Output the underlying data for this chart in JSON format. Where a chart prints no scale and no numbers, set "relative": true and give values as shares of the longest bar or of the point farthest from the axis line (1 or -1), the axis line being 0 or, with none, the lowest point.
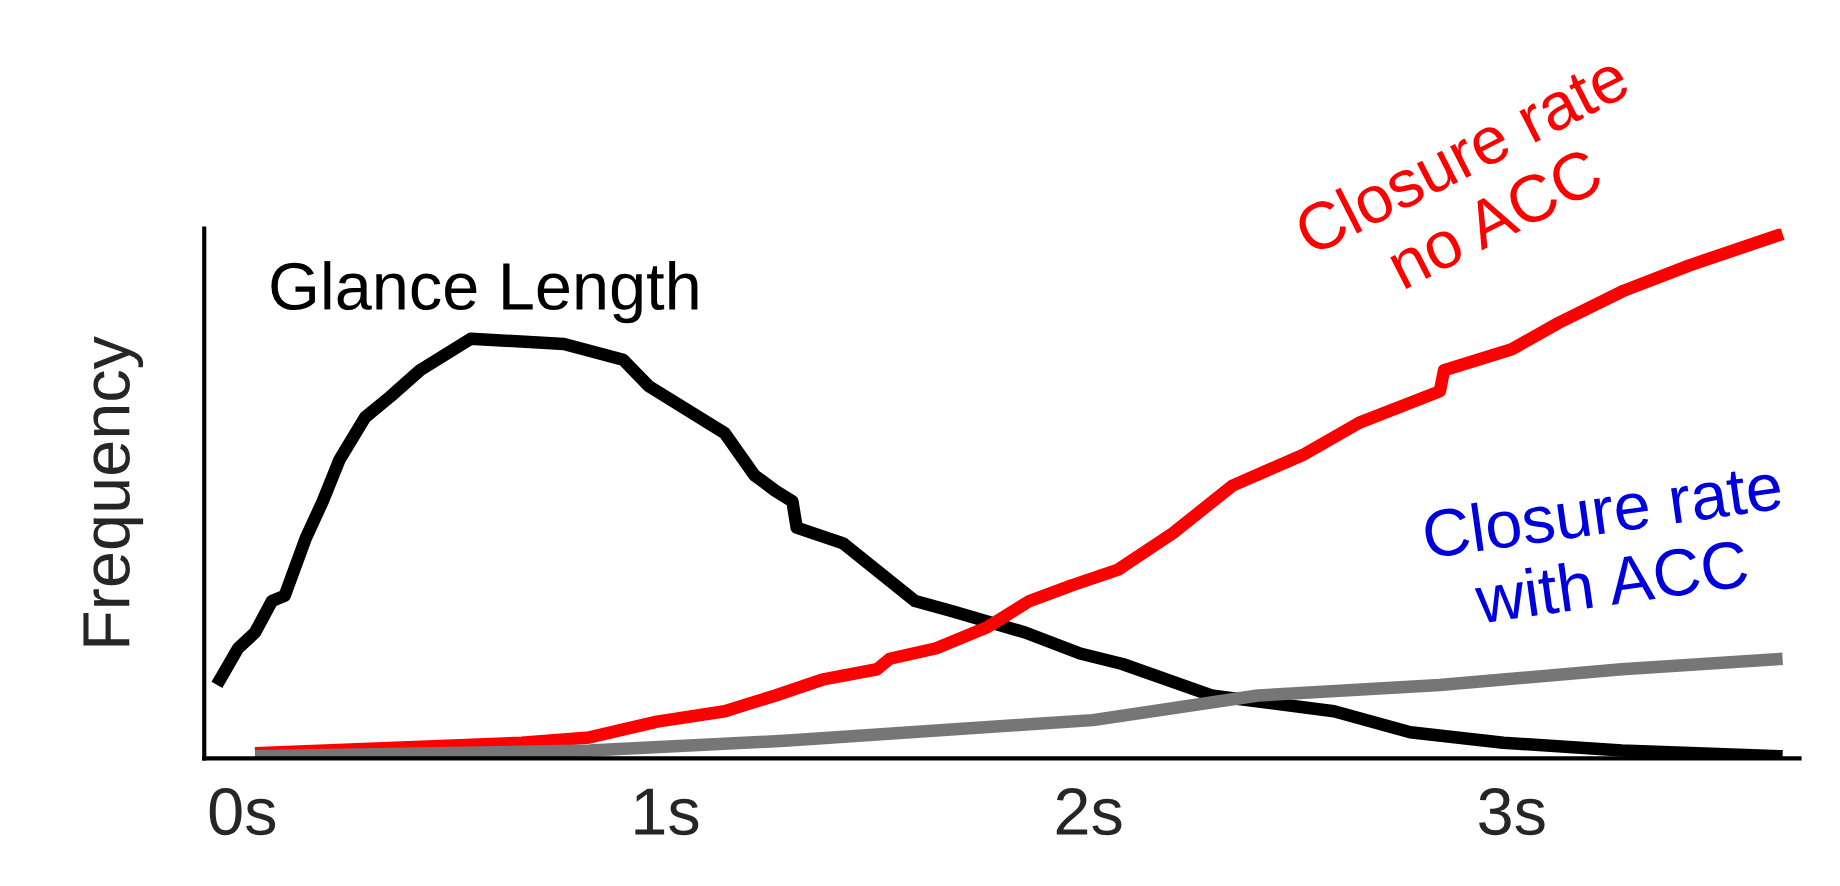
{
  "chart_data": {
    "type": "line",
    "relative": true,
    "ylabel": "Frequency",
    "xlim": [
      -0.09,
      3.68
    ],
    "xticks": [
      {
        "value": 0,
        "label": "0s"
      },
      {
        "value": 1,
        "label": "1s"
      },
      {
        "value": 2,
        "label": "2s"
      },
      {
        "value": 3,
        "label": "3s"
      }
    ],
    "grid": false,
    "legend": false,
    "marker": "none",
    "line_style": "solid",
    "series": [
      {
        "name": "Glance Length",
        "color": "#000000",
        "x": [
          -0.06,
          -0.01,
          0.03,
          0.07,
          0.1,
          0.15,
          0.19,
          0.23,
          0.29,
          0.35,
          0.42,
          0.54,
          0.76,
          0.9,
          0.96,
          1.14,
          1.21,
          1.26,
          1.3,
          1.31,
          1.42,
          1.59,
          1.68,
          1.85,
          1.98,
          2.08,
          2.29,
          2.58,
          2.76,
          2.98,
          3.26,
          3.64
        ],
        "values": [
          0.14,
          0.21,
          0.24,
          0.3,
          0.31,
          0.42,
          0.49,
          0.57,
          0.65,
          0.69,
          0.74,
          0.8,
          0.79,
          0.76,
          0.71,
          0.62,
          0.54,
          0.51,
          0.49,
          0.44,
          0.41,
          0.3,
          0.28,
          0.24,
          0.2,
          0.18,
          0.12,
          0.09,
          0.05,
          0.03,
          0.015,
          0.004
        ]
      },
      {
        "name": "Closure rate\nno ACC",
        "color": "#ff0000",
        "x": [
          0.03,
          0.66,
          0.82,
          0.98,
          1.14,
          1.26,
          1.37,
          1.5,
          1.53,
          1.64,
          1.76,
          1.86,
          1.96,
          2.07,
          2.2,
          2.34,
          2.51,
          2.64,
          2.83,
          2.84,
          3.0,
          3.11,
          3.26,
          3.42,
          3.64
        ],
        "values": [
          0.01,
          0.03,
          0.04,
          0.07,
          0.09,
          0.12,
          0.15,
          0.17,
          0.19,
          0.21,
          0.25,
          0.3,
          0.33,
          0.36,
          0.43,
          0.52,
          0.58,
          0.64,
          0.7,
          0.74,
          0.78,
          0.83,
          0.89,
          0.94,
          1.0
        ]
      },
      {
        "name": "Closure rate\nwith ACC",
        "color": "#767676",
        "x": [
          0.03,
          0.82,
          1.29,
          1.86,
          2.01,
          2.4,
          2.83,
          3.26,
          3.64
        ],
        "values": [
          0.004,
          0.015,
          0.034,
          0.065,
          0.073,
          0.12,
          0.14,
          0.17,
          0.19
        ]
      }
    ]
  }
}
